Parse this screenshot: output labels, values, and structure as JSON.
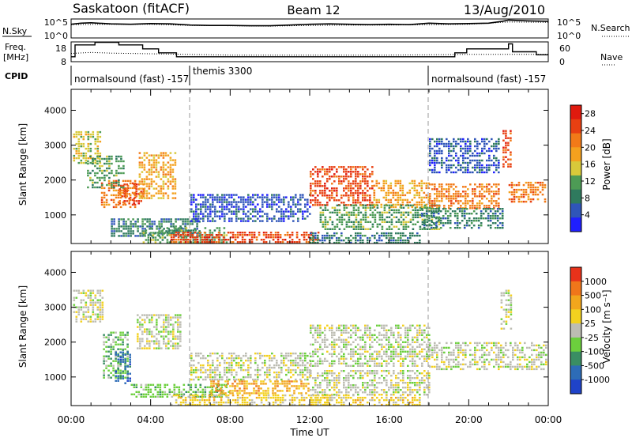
{
  "header": {
    "station": "Saskatoon (fitACF)",
    "beam": "Beam 12",
    "date": "13/Aug/2010"
  },
  "colors": {
    "power_scale": [
      "#1f1fff",
      "#2f55b9",
      "#2f7a5e",
      "#4d9b55",
      "#d8c93a",
      "#f4a11e",
      "#f27a18",
      "#e84012",
      "#e01a0e"
    ],
    "velocity_scale": [
      "#1f43c9",
      "#2d6cb7",
      "#3a8e63",
      "#6ccf3d",
      "#bdbdb3",
      "#f3d11f",
      "#f2a61c",
      "#f0761a",
      "#e8321a"
    ]
  },
  "chart_data": [
    {
      "type": "line",
      "panel": "noise",
      "left_label": "N.Sky",
      "right_label": "N.Search",
      "left_ticks": [
        "10^5",
        "10^0"
      ],
      "right_ticks": [
        "10^5",
        "10^0"
      ],
      "x_range_hours": [
        0,
        24
      ],
      "series": [
        {
          "style": "solid",
          "hours": [
            0,
            0.5,
            1,
            2,
            3,
            4,
            5,
            6,
            7,
            8,
            9,
            10,
            11,
            12,
            13,
            14,
            15,
            16,
            17,
            18,
            19,
            20,
            21,
            21.7,
            22,
            23,
            24
          ],
          "log10": [
            3.6,
            3.9,
            4.0,
            3.7,
            3.6,
            3.8,
            3.7,
            3.4,
            3.3,
            3.3,
            3.2,
            3.2,
            3.4,
            3.6,
            3.7,
            3.6,
            3.5,
            3.6,
            3.5,
            3.9,
            3.7,
            3.8,
            3.9,
            4.4,
            4.7,
            4.5,
            4.4
          ]
        },
        {
          "style": "dotted",
          "hours": [
            0,
            2,
            4,
            6,
            8,
            10,
            12,
            14,
            16,
            18,
            20,
            22,
            24
          ],
          "log10": [
            3.5,
            3.6,
            3.6,
            3.3,
            3.2,
            3.1,
            3.3,
            3.4,
            3.4,
            3.5,
            3.6,
            4.2,
            4.1
          ]
        }
      ]
    },
    {
      "type": "line",
      "panel": "frequency",
      "left_label_lines": [
        "Freq.",
        "[MHz]"
      ],
      "right_label": "Nave",
      "left_ticks": [
        18,
        8
      ],
      "right_ticks": [
        60,
        0
      ],
      "freq_range_mhz": [
        8,
        18
      ],
      "nave_range": [
        0,
        60
      ],
      "series": [
        {
          "style": "solid",
          "name": "Freq.",
          "hours": [
            0,
            0.2,
            0.9,
            1.2,
            1.6,
            2.4,
            3.5,
            3.6,
            4.3,
            4.4,
            5.2,
            5.3,
            7.5,
            8.0,
            8.2,
            18.6,
            19.3,
            19.7,
            19.9,
            21.7,
            22.0,
            22.2,
            23.0,
            23.4,
            24
          ],
          "values": [
            10.5,
            16.5,
            16.5,
            17.8,
            17.8,
            16.5,
            16.5,
            14.5,
            14.5,
            12.5,
            12.5,
            10.5,
            10.5,
            10.5,
            10.5,
            10.5,
            12.5,
            12.5,
            14.5,
            14.5,
            17.0,
            13.0,
            13.0,
            11.5,
            11.5
          ]
        },
        {
          "style": "dotted",
          "name": "Nave",
          "hours": [
            0,
            1,
            2,
            3,
            4,
            6,
            8,
            12,
            16,
            18,
            20,
            22,
            24
          ],
          "values": [
            25,
            28,
            26,
            25,
            24,
            22,
            20,
            20,
            20,
            21,
            22,
            22,
            22
          ]
        }
      ]
    },
    {
      "type": "table",
      "panel": "cpid",
      "label": "CPID",
      "segments": [
        {
          "start_hour": 0,
          "text": "normalsound (fast) -157"
        },
        {
          "start_hour": 6,
          "text": "themis 3300"
        },
        {
          "start_hour": 18,
          "text": "normalsound (fast) -157"
        }
      ]
    },
    {
      "type": "heatmap",
      "panel": "power",
      "ylabel": "Slant Range [km]",
      "yticks": [
        1000,
        2000,
        3000,
        4000
      ],
      "ylim_km": [
        180,
        4600
      ],
      "colorbar_label": "Power [dB]",
      "colorbar_ticks": [
        4,
        8,
        12,
        16,
        20,
        24,
        28
      ],
      "colorbar_range": [
        0,
        30
      ],
      "dashed_hours": [
        6,
        18
      ],
      "regions": [
        {
          "t0": 0.1,
          "t1": 1.5,
          "r0": 2500,
          "r1": 3400,
          "c": 4
        },
        {
          "t0": 1.5,
          "t1": 3.2,
          "r0": 1200,
          "r1": 2000,
          "c": 6
        },
        {
          "t0": 2.4,
          "t1": 3.6,
          "r0": 1300,
          "r1": 1900,
          "c": 7
        },
        {
          "t0": 3.4,
          "t1": 5.3,
          "r0": 1500,
          "r1": 2800,
          "c": 5
        },
        {
          "t0": 0.8,
          "t1": 2.6,
          "r0": 1800,
          "r1": 2700,
          "c": 3
        },
        {
          "t0": 2.0,
          "t1": 6.5,
          "r0": 400,
          "r1": 900,
          "c": 2
        },
        {
          "t0": 6.0,
          "t1": 12.0,
          "r0": 800,
          "r1": 1600,
          "c": 1
        },
        {
          "t0": 3.6,
          "t1": 7.8,
          "r0": 180,
          "r1": 650,
          "c": 3
        },
        {
          "t0": 5.0,
          "t1": 12.5,
          "r0": 180,
          "r1": 520,
          "c": 7
        },
        {
          "t0": 12.0,
          "t1": 17.6,
          "r0": 180,
          "r1": 500,
          "c": 2
        },
        {
          "t0": 12.0,
          "t1": 15.2,
          "r0": 1300,
          "r1": 2400,
          "c": 7
        },
        {
          "t0": 15.2,
          "t1": 18.0,
          "r0": 1200,
          "r1": 2000,
          "c": 5
        },
        {
          "t0": 12.5,
          "t1": 18.5,
          "r0": 600,
          "r1": 1300,
          "c": 3
        },
        {
          "t0": 18.0,
          "t1": 21.5,
          "r0": 1200,
          "r1": 1900,
          "c": 6
        },
        {
          "t0": 17.6,
          "t1": 21.7,
          "r0": 600,
          "r1": 1200,
          "c": 2
        },
        {
          "t0": 22.0,
          "t1": 23.9,
          "r0": 1400,
          "r1": 1950,
          "c": 6
        },
        {
          "t0": 21.7,
          "t1": 22.1,
          "r0": 2400,
          "r1": 3500,
          "c": 7
        },
        {
          "t0": 18.0,
          "t1": 21.5,
          "r0": 2200,
          "r1": 3200,
          "c": 1
        }
      ]
    },
    {
      "type": "heatmap",
      "panel": "velocity",
      "ylabel": "Slant Range [km]",
      "yticks": [
        1000,
        2000,
        3000,
        4000
      ],
      "ylim_km": [
        180,
        4600
      ],
      "colorbar_label": "Velocity [m s⁻¹]",
      "colorbar_ticks": [
        "1000",
        "500",
        "100",
        "25",
        "-25",
        "-100",
        "-500",
        "-1000"
      ],
      "xlabel": "Time UT",
      "xticks": [
        "00:00",
        "04:00",
        "08:00",
        "12:00",
        "16:00",
        "20:00",
        "00:00"
      ],
      "xlim_hours": [
        0,
        24
      ],
      "dashed_hours": [
        6,
        18
      ],
      "regions": [
        {
          "t0": 0.1,
          "t1": 1.6,
          "r0": 2600,
          "r1": 3500,
          "c": 4
        },
        {
          "t0": 1.6,
          "t1": 2.8,
          "r0": 1000,
          "r1": 2300,
          "c": 3
        },
        {
          "t0": 2.2,
          "t1": 3.0,
          "r0": 800,
          "r1": 1800,
          "c": 1
        },
        {
          "t0": 3.3,
          "t1": 5.5,
          "r0": 1800,
          "r1": 2800,
          "c": 4
        },
        {
          "t0": 3.0,
          "t1": 8.0,
          "r0": 400,
          "r1": 800,
          "c": 3
        },
        {
          "t0": 6.0,
          "t1": 12.0,
          "r0": 900,
          "r1": 1700,
          "c": 4
        },
        {
          "t0": 5.0,
          "t1": 13.0,
          "r0": 180,
          "r1": 500,
          "c": 5
        },
        {
          "t0": 7.0,
          "t1": 12.0,
          "r0": 500,
          "r1": 900,
          "c": 6
        },
        {
          "t0": 12.0,
          "t1": 18.0,
          "r0": 1300,
          "r1": 2500,
          "c": 4
        },
        {
          "t0": 12.0,
          "t1": 18.0,
          "r0": 500,
          "r1": 1200,
          "c": 4
        },
        {
          "t0": 12.0,
          "t1": 17.5,
          "r0": 180,
          "r1": 500,
          "c": 5
        },
        {
          "t0": 18.0,
          "t1": 23.9,
          "r0": 1200,
          "r1": 2000,
          "c": 4
        },
        {
          "t0": 21.6,
          "t1": 22.1,
          "r0": 2400,
          "r1": 3500,
          "c": 4
        }
      ]
    }
  ]
}
